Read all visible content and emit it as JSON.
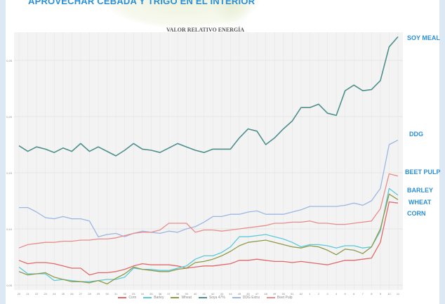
{
  "header": {
    "title": "APROVECHAR CEBADA Y TRIGO EN EL INTERIOR"
  },
  "chart_data": {
    "type": "line",
    "title": "VALOR RELATIVO ENERGÍA",
    "xlabel": "",
    "ylabel": "",
    "x": [
      "20",
      "21",
      "22",
      "23",
      "24",
      "25",
      "26",
      "27",
      "28",
      "29",
      "30",
      "31",
      "32",
      "33",
      "34",
      "35",
      "36",
      "37",
      "38",
      "39",
      "40",
      "41",
      "42",
      "43",
      "44",
      "45",
      "46",
      "47",
      "48",
      "49",
      "50",
      "51",
      "52",
      "1",
      "2",
      "3",
      "4",
      "5",
      "6",
      "7",
      "8",
      "9",
      "10",
      "11"
    ],
    "ylim": [
      0.05,
      0.27
    ],
    "yticks": [
      0.05,
      0.1,
      0.15,
      0.2,
      0.25
    ],
    "ytick_labels": [
      "0,05",
      "0,10",
      "0,15",
      "0,20",
      "0,25"
    ],
    "grid": true,
    "legend_position": "bottom",
    "series": [
      {
        "name": "Corn",
        "end_label": "CORN",
        "color": "#e06868",
        "values": [
          0.072,
          0.069,
          0.07,
          0.07,
          0.069,
          0.067,
          0.065,
          0.065,
          0.059,
          0.061,
          0.061,
          0.062,
          0.064,
          0.067,
          0.069,
          0.068,
          0.068,
          0.068,
          0.067,
          0.065,
          0.066,
          0.067,
          0.067,
          0.068,
          0.069,
          0.072,
          0.072,
          0.073,
          0.072,
          0.071,
          0.071,
          0.07,
          0.071,
          0.07,
          0.069,
          0.068,
          0.07,
          0.072,
          0.072,
          0.073,
          0.074,
          0.088,
          0.124,
          0.123
        ]
      },
      {
        "name": "Barley",
        "end_label": "BARLEY",
        "color": "#5ec8d8",
        "values": [
          0.066,
          0.06,
          0.06,
          0.06,
          0.054,
          0.055,
          0.054,
          0.053,
          0.053,
          0.054,
          0.055,
          0.055,
          0.057,
          0.065,
          0.064,
          0.064,
          0.063,
          0.063,
          0.065,
          0.067,
          0.073,
          0.076,
          0.076,
          0.079,
          0.084,
          0.093,
          0.093,
          0.094,
          0.095,
          0.093,
          0.091,
          0.088,
          0.084,
          0.086,
          0.086,
          0.085,
          0.083,
          0.085,
          0.085,
          0.083,
          0.084,
          0.098,
          0.136,
          0.13
        ]
      },
      {
        "name": "Wheat",
        "end_label": "WHEAT",
        "color": "#8c9a48",
        "values": [
          0.062,
          0.059,
          0.06,
          0.061,
          0.057,
          0.055,
          0.053,
          0.053,
          0.052,
          0.054,
          0.051,
          0.056,
          0.06,
          0.066,
          0.064,
          0.063,
          0.062,
          0.062,
          0.064,
          0.065,
          0.07,
          0.071,
          0.073,
          0.076,
          0.08,
          0.085,
          0.088,
          0.089,
          0.09,
          0.088,
          0.086,
          0.084,
          0.083,
          0.085,
          0.084,
          0.081,
          0.077,
          0.082,
          0.081,
          0.078,
          0.084,
          0.1,
          0.131,
          0.126
        ]
      },
      {
        "name": "Soya 47%",
        "end_label": "SOY MEAL",
        "color": "#4e8f8c",
        "values": [
          0.174,
          0.169,
          0.173,
          0.171,
          0.168,
          0.172,
          0.169,
          0.176,
          0.169,
          0.173,
          0.169,
          0.165,
          0.17,
          0.176,
          0.171,
          0.17,
          0.168,
          0.172,
          0.176,
          0.173,
          0.17,
          0.168,
          0.171,
          0.171,
          0.171,
          0.181,
          0.189,
          0.187,
          0.175,
          0.181,
          0.189,
          0.196,
          0.208,
          0.208,
          0.211,
          0.203,
          0.201,
          0.223,
          0.228,
          0.223,
          0.224,
          0.232,
          0.262,
          0.271
        ]
      },
      {
        "name": "DDG Extra",
        "end_label": "DDG",
        "color": "#9db6e2",
        "values": [
          0.119,
          0.119,
          0.115,
          0.11,
          0.109,
          0.111,
          0.109,
          0.109,
          0.107,
          0.093,
          0.095,
          0.096,
          0.093,
          0.096,
          0.098,
          0.097,
          0.096,
          0.098,
          0.097,
          0.1,
          0.102,
          0.106,
          0.111,
          0.111,
          0.113,
          0.113,
          0.115,
          0.116,
          0.113,
          0.113,
          0.113,
          0.115,
          0.117,
          0.12,
          0.12,
          0.12,
          0.12,
          0.121,
          0.123,
          0.121,
          0.125,
          0.136,
          0.175,
          0.179
        ]
      },
      {
        "name": "Beet Pulp",
        "end_label": "BEET PULP",
        "color": "#e98c8c",
        "values": [
          0.083,
          0.086,
          0.087,
          0.088,
          0.088,
          0.089,
          0.089,
          0.09,
          0.09,
          0.091,
          0.091,
          0.092,
          0.094,
          0.096,
          0.097,
          0.097,
          0.099,
          0.105,
          0.105,
          0.105,
          0.097,
          0.099,
          0.099,
          0.098,
          0.099,
          0.1,
          0.101,
          0.102,
          0.103,
          0.105,
          0.105,
          0.106,
          0.106,
          0.107,
          0.105,
          0.105,
          0.104,
          0.104,
          0.105,
          0.106,
          0.107,
          0.118,
          0.149,
          0.147
        ]
      }
    ]
  }
}
